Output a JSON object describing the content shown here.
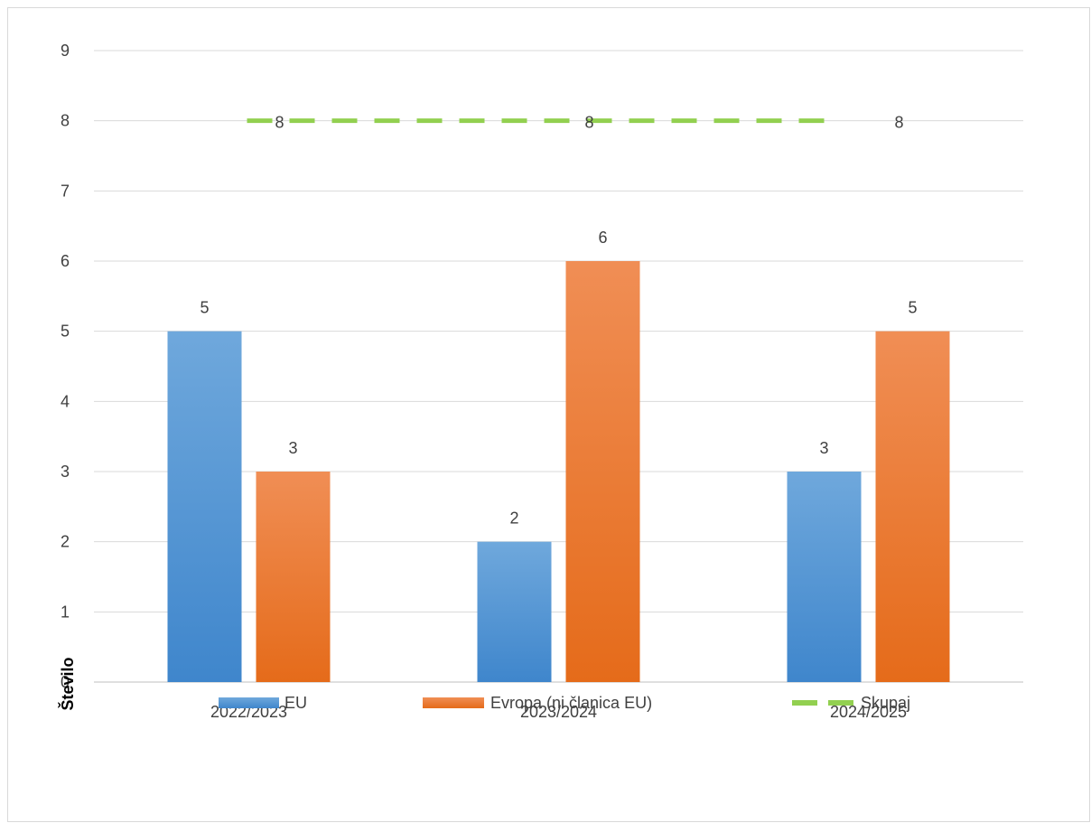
{
  "chart_data": {
    "type": "bar",
    "categories": [
      "2022/2023",
      "2023/2024",
      "2024/2025"
    ],
    "series": [
      {
        "name": "EU",
        "kind": "bar",
        "values": [
          5,
          2,
          3
        ],
        "color": "#5b9bd5"
      },
      {
        "name": "Evropa (ni članica EU)",
        "kind": "bar",
        "values": [
          3,
          6,
          5
        ],
        "color": "#ed7d31"
      },
      {
        "name": "Skupaj",
        "kind": "line",
        "style": "dashed",
        "values": [
          8,
          8,
          8
        ],
        "color": "#92d050"
      }
    ],
    "ylabel": "Število",
    "xlabel": "",
    "ylim": [
      0,
      9
    ],
    "yticks": [
      0,
      1,
      2,
      3,
      4,
      5,
      6,
      7,
      8,
      9
    ],
    "grid": true,
    "legend": "bottom",
    "data_labels": true
  }
}
